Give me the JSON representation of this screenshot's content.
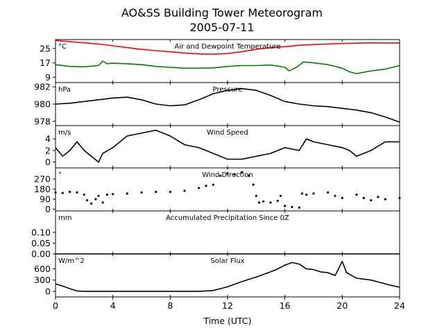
{
  "figure": {
    "title": "AO&SS Building Tower Meteorogram",
    "subtitle": "2005-07-11",
    "xlabel": "Time (UTC)"
  },
  "chart_data": {
    "type": "line",
    "x_range": [
      0,
      24
    ],
    "x_ticks": [
      0,
      4,
      8,
      12,
      16,
      20,
      24
    ],
    "x_tick_labels": [
      "0",
      "4",
      "8",
      "12",
      "16",
      "20",
      "24"
    ],
    "panels": [
      {
        "id": "temp",
        "title": "Air and Dewpoint Temperature",
        "unit": "°C",
        "ylim": [
          6,
          30
        ],
        "ticks": [
          9,
          17,
          25
        ],
        "tick_labels": [
          "9",
          "17",
          "25"
        ],
        "series": [
          {
            "color": "#ff0000",
            "style": "line",
            "points": [
              [
                0,
                29.5
              ],
              [
                1,
                28.8
              ],
              [
                2,
                28.2
              ],
              [
                3,
                27.5
              ],
              [
                4,
                26.5
              ],
              [
                5,
                25.5
              ],
              [
                6,
                24.5
              ],
              [
                7,
                23.8
              ],
              [
                8,
                23.2
              ],
              [
                9,
                22.5
              ],
              [
                10,
                22
              ],
              [
                11,
                21.8
              ],
              [
                12,
                22.2
              ],
              [
                13,
                23.2
              ],
              [
                14,
                24.5
              ],
              [
                15,
                25.5
              ],
              [
                16,
                26
              ],
              [
                17,
                26.8
              ],
              [
                18,
                27.2
              ],
              [
                19,
                27.5
              ],
              [
                20,
                27.8
              ],
              [
                21,
                28
              ],
              [
                22,
                28.2
              ],
              [
                23,
                28.1
              ],
              [
                24,
                28.1
              ]
            ]
          },
          {
            "color": "#008000",
            "style": "line",
            "points": [
              [
                0,
                16
              ],
              [
                1,
                15
              ],
              [
                2,
                14.8
              ],
              [
                3,
                15.5
              ],
              [
                3.3,
                18
              ],
              [
                3.6,
                16.5
              ],
              [
                4,
                16.8
              ],
              [
                5,
                16.5
              ],
              [
                6,
                16
              ],
              [
                7,
                15
              ],
              [
                8,
                14.5
              ],
              [
                9,
                14
              ],
              [
                10,
                14
              ],
              [
                11,
                14.2
              ],
              [
                12,
                15
              ],
              [
                13,
                15.5
              ],
              [
                14,
                15.5
              ],
              [
                15,
                15.8
              ],
              [
                16,
                14.5
              ],
              [
                16.3,
                12.5
              ],
              [
                16.8,
                14.5
              ],
              [
                17.3,
                17.5
              ],
              [
                18,
                17
              ],
              [
                19,
                16
              ],
              [
                20,
                14
              ],
              [
                20.5,
                12
              ],
              [
                21,
                11
              ],
              [
                22,
                12.5
              ],
              [
                23,
                13.5
              ],
              [
                24,
                15.5
              ]
            ]
          }
        ]
      },
      {
        "id": "pressure",
        "title": "Pressure",
        "unit": "hPa",
        "ylim": [
          977.5,
          982.5
        ],
        "ticks": [
          978,
          980,
          982
        ],
        "tick_labels": [
          "978",
          "980",
          "982"
        ],
        "series": [
          {
            "color": "#000000",
            "style": "line",
            "points": [
              [
                0,
                980
              ],
              [
                1,
                980.1
              ],
              [
                2,
                980.3
              ],
              [
                3,
                980.5
              ],
              [
                4,
                980.7
              ],
              [
                5,
                980.8
              ],
              [
                6,
                980.5
              ],
              [
                7,
                980
              ],
              [
                8,
                979.8
              ],
              [
                9,
                979.9
              ],
              [
                10,
                980.5
              ],
              [
                11,
                981.2
              ],
              [
                12,
                981.6
              ],
              [
                13,
                981.8
              ],
              [
                14,
                981.6
              ],
              [
                15,
                981
              ],
              [
                16,
                980.3
              ],
              [
                17,
                980
              ],
              [
                18,
                979.8
              ],
              [
                19,
                979.7
              ],
              [
                20,
                979.5
              ],
              [
                21,
                979.3
              ],
              [
                22,
                979
              ],
              [
                23,
                978.5
              ],
              [
                24,
                977.9
              ]
            ]
          }
        ]
      },
      {
        "id": "wind-speed",
        "title": "Wind Speed",
        "unit": "m/s",
        "ylim": [
          -1,
          6.3
        ],
        "ticks": [
          0,
          2,
          4
        ],
        "tick_labels": [
          "0",
          "2",
          "4"
        ],
        "series": [
          {
            "color": "#000000",
            "style": "line",
            "points": [
              [
                0,
                2.5
              ],
              [
                0.5,
                1
              ],
              [
                1,
                2
              ],
              [
                1.5,
                3.5
              ],
              [
                2,
                2
              ],
              [
                2.5,
                1
              ],
              [
                3,
                0
              ],
              [
                3.3,
                1.5
              ],
              [
                4,
                2.5
              ],
              [
                5,
                4.5
              ],
              [
                6,
                5
              ],
              [
                7,
                5.5
              ],
              [
                8,
                4.5
              ],
              [
                9,
                3
              ],
              [
                10,
                2.5
              ],
              [
                11,
                1.5
              ],
              [
                12,
                0.5
              ],
              [
                13,
                0.5
              ],
              [
                14,
                1
              ],
              [
                15,
                1.5
              ],
              [
                16,
                2.5
              ],
              [
                17,
                2
              ],
              [
                17.5,
                4
              ],
              [
                18,
                3.5
              ],
              [
                19,
                3
              ],
              [
                20,
                2.5
              ],
              [
                20.5,
                2
              ],
              [
                21,
                1
              ],
              [
                22,
                2
              ],
              [
                23,
                3.5
              ],
              [
                24,
                3.5
              ]
            ]
          }
        ]
      },
      {
        "id": "wind-dir",
        "title": "Wind Direction",
        "unit": "°",
        "ylim": [
          -15,
          370
        ],
        "ticks": [
          0,
          90,
          180,
          270
        ],
        "tick_labels": [
          "0",
          "90",
          "180",
          "270"
        ],
        "series": [
          {
            "color": "#000000",
            "style": "scatter",
            "points": [
              [
                0,
                150
              ],
              [
                0.5,
                145
              ],
              [
                1,
                155
              ],
              [
                1.5,
                150
              ],
              [
                2,
                130
              ],
              [
                2.2,
                80
              ],
              [
                2.5,
                50
              ],
              [
                2.8,
                90
              ],
              [
                3,
                120
              ],
              [
                3.3,
                60
              ],
              [
                3.6,
                130
              ],
              [
                4,
                135
              ],
              [
                5,
                140
              ],
              [
                6,
                150
              ],
              [
                7,
                155
              ],
              [
                8,
                155
              ],
              [
                9,
                165
              ],
              [
                10,
                190
              ],
              [
                10.5,
                210
              ],
              [
                11,
                220
              ],
              [
                11.5,
                300
              ],
              [
                12,
                320
              ],
              [
                12.5,
                310
              ],
              [
                13,
                330
              ],
              [
                13.5,
                300
              ],
              [
                13.8,
                220
              ],
              [
                14,
                120
              ],
              [
                14.2,
                60
              ],
              [
                14.5,
                70
              ],
              [
                15,
                60
              ],
              [
                15.5,
                75
              ],
              [
                15.7,
                120
              ],
              [
                16,
                30
              ],
              [
                16.5,
                20
              ],
              [
                17,
                15
              ],
              [
                17.2,
                140
              ],
              [
                17.5,
                130
              ],
              [
                18,
                140
              ],
              [
                19,
                150
              ],
              [
                19.5,
                120
              ],
              [
                20,
                100
              ],
              [
                21,
                130
              ],
              [
                21.5,
                100
              ],
              [
                22,
                80
              ],
              [
                22.5,
                110
              ],
              [
                23,
                90
              ],
              [
                24,
                100
              ]
            ]
          }
        ]
      },
      {
        "id": "precip",
        "title": "Accumulated Precipitation Since 0Z",
        "unit": "mm",
        "ylim": [
          0,
          0.2
        ],
        "ticks": [
          0.0,
          0.05,
          0.1
        ],
        "tick_labels": [
          "0.00",
          "0.05",
          "0.10"
        ],
        "series": [
          {
            "color": "#000000",
            "style": "line",
            "points": [
              [
                0,
                0
              ],
              [
                24,
                0
              ]
            ]
          }
        ]
      },
      {
        "id": "solar",
        "title": "Solar Flux",
        "unit": "W/m^2",
        "ylim": [
          -150,
          1000
        ],
        "ticks": [
          0,
          300,
          600
        ],
        "tick_labels": [
          "0",
          "300",
          "600"
        ],
        "series": [
          {
            "color": "#000000",
            "style": "line",
            "points": [
              [
                0,
                200
              ],
              [
                0.5,
                140
              ],
              [
                1,
                70
              ],
              [
                1.5,
                10
              ],
              [
                2,
                0
              ],
              [
                3,
                0
              ],
              [
                4,
                0
              ],
              [
                5,
                0
              ],
              [
                6,
                0
              ],
              [
                7,
                0
              ],
              [
                8,
                0
              ],
              [
                9,
                0
              ],
              [
                10,
                0
              ],
              [
                11,
                20
              ],
              [
                12,
                120
              ],
              [
                13,
                260
              ],
              [
                14,
                380
              ],
              [
                15,
                520
              ],
              [
                15.5,
                600
              ],
              [
                16,
                700
              ],
              [
                16.5,
                770
              ],
              [
                17,
                730
              ],
              [
                17.5,
                600
              ],
              [
                18,
                580
              ],
              [
                18.5,
                520
              ],
              [
                19,
                500
              ],
              [
                19.5,
                420
              ],
              [
                20,
                800
              ],
              [
                20.3,
                500
              ],
              [
                21,
                350
              ],
              [
                22,
                300
              ],
              [
                23,
                200
              ],
              [
                23.5,
                150
              ],
              [
                24,
                110
              ]
            ]
          }
        ]
      }
    ]
  }
}
